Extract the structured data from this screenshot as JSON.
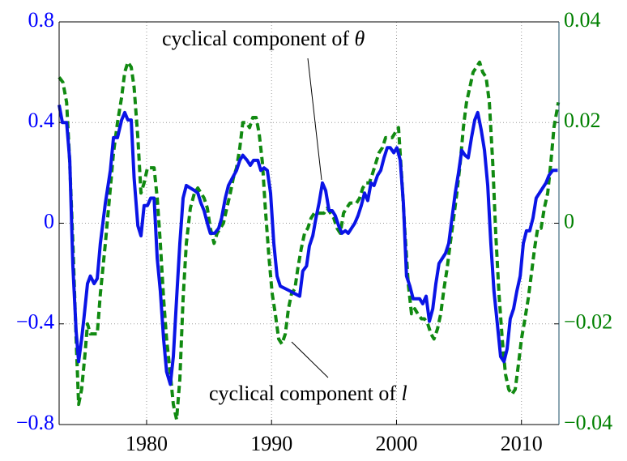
{
  "chart_data": {
    "type": "line",
    "xlim": [
      1973,
      2013
    ],
    "xticks": [
      1980,
      1990,
      2000,
      2010
    ],
    "ylim": [
      -0.8,
      0.8
    ],
    "yticks": [
      -0.8,
      -0.4,
      0,
      0.4,
      0.8
    ],
    "y2lim": [
      -0.04,
      0.04
    ],
    "y2ticks": [
      -0.04,
      -0.02,
      0,
      0.02,
      0.04
    ],
    "grid": true,
    "left_axis_color": "#0000ff",
    "right_axis_color": "#008000",
    "annotations": [
      {
        "text": "cyclical component of ",
        "symbol": "θ",
        "series": 0
      },
      {
        "text": "cyclical component of ",
        "symbol": "l",
        "series": 1
      }
    ],
    "series": [
      {
        "color": "#0a14e6",
        "dashed": false,
        "x": [
          1973.0,
          1973.26,
          1973.6,
          1973.85,
          1974.1,
          1974.36,
          1974.56,
          1974.8,
          1975.0,
          1975.27,
          1975.5,
          1975.8,
          1976.05,
          1976.3,
          1976.7,
          1977.1,
          1977.35,
          1977.67,
          1978.0,
          1978.25,
          1978.5,
          1978.77,
          1979.0,
          1979.3,
          1979.55,
          1979.8,
          1980.07,
          1980.33,
          1980.6,
          1980.85,
          1981.1,
          1981.36,
          1981.6,
          1981.9,
          1982.14,
          1982.4,
          1982.66,
          1982.92,
          1983.18,
          1983.5,
          1983.83,
          1984.1,
          1984.35,
          1984.6,
          1984.86,
          1985.1,
          1985.45,
          1985.77,
          1986.0,
          1986.3,
          1986.55,
          1986.87,
          1987.2,
          1987.46,
          1987.7,
          1988.04,
          1988.3,
          1988.56,
          1988.9,
          1989.14,
          1989.4,
          1989.66,
          1989.92,
          1990.18,
          1990.44,
          1990.7,
          1991.1,
          1991.5,
          1991.87,
          1992.25,
          1992.5,
          1992.8,
          1993.03,
          1993.3,
          1993.55,
          1993.8,
          1994.07,
          1994.33,
          1994.6,
          1994.85,
          1995.1,
          1995.37,
          1995.63,
          1995.9,
          1996.14,
          1996.4,
          1996.66,
          1996.92,
          1997.18,
          1997.44,
          1997.7,
          1997.96,
          1998.2,
          1998.48,
          1998.74,
          1999.0,
          1999.26,
          1999.5,
          1999.78,
          2000.03,
          2000.3,
          2000.55,
          2000.8,
          2001.07,
          2001.33,
          2001.6,
          2001.85,
          2002.1,
          2002.37,
          2002.63,
          2002.9,
          2003.15,
          2003.4,
          2003.66,
          2003.92,
          2004.18,
          2004.44,
          2004.7,
          2004.96,
          2005.22,
          2005.48,
          2005.74,
          2006.0,
          2006.26,
          2006.5,
          2006.78,
          2007.04,
          2007.3,
          2007.55,
          2007.8,
          2008.07,
          2008.33,
          2008.6,
          2008.85,
          2009.1,
          2009.37,
          2009.63,
          2009.9,
          2010.15,
          2010.4,
          2010.66,
          2010.92,
          2011.18,
          2011.44,
          2011.7,
          2011.96,
          2012.2,
          2012.5,
          2012.9
        ],
        "values": [
          0.47,
          0.4,
          0.4,
          0.25,
          -0.17,
          -0.43,
          -0.55,
          -0.46,
          -0.37,
          -0.24,
          -0.21,
          -0.24,
          -0.22,
          -0.08,
          0.08,
          0.21,
          0.34,
          0.34,
          0.41,
          0.44,
          0.41,
          0.41,
          0.18,
          -0.01,
          -0.05,
          0.07,
          0.07,
          0.1,
          0.1,
          -0.14,
          -0.27,
          -0.46,
          -0.59,
          -0.64,
          -0.53,
          -0.3,
          -0.08,
          0.1,
          0.15,
          0.14,
          0.13,
          0.12,
          0.08,
          0.05,
          0.0,
          -0.04,
          -0.04,
          -0.02,
          0.02,
          0.1,
          0.15,
          0.18,
          0.21,
          0.25,
          0.27,
          0.25,
          0.23,
          0.25,
          0.25,
          0.21,
          0.22,
          0.21,
          0.12,
          -0.08,
          -0.21,
          -0.25,
          -0.26,
          -0.27,
          -0.28,
          -0.29,
          -0.19,
          -0.17,
          -0.09,
          -0.05,
          0.02,
          0.08,
          0.16,
          0.13,
          0.05,
          0.05,
          0.03,
          -0.01,
          -0.04,
          -0.03,
          -0.04,
          -0.02,
          0.0,
          0.03,
          0.07,
          0.12,
          0.09,
          0.16,
          0.15,
          0.19,
          0.21,
          0.26,
          0.3,
          0.3,
          0.28,
          0.3,
          0.25,
          0.08,
          -0.21,
          -0.25,
          -0.3,
          -0.3,
          -0.3,
          -0.32,
          -0.29,
          -0.39,
          -0.34,
          -0.24,
          -0.16,
          -0.14,
          -0.12,
          -0.08,
          0.02,
          0.12,
          0.2,
          0.29,
          0.27,
          0.26,
          0.34,
          0.41,
          0.44,
          0.37,
          0.29,
          0.15,
          -0.08,
          -0.27,
          -0.4,
          -0.53,
          -0.55,
          -0.5,
          -0.38,
          -0.34,
          -0.27,
          -0.21,
          -0.08,
          -0.03,
          -0.03,
          0.02,
          0.1,
          0.12,
          0.14,
          0.16,
          0.19,
          0.21,
          0.21
        ]
      },
      {
        "color": "#118a11",
        "dashed": true,
        "axis": "y2",
        "x": [
          1973.0,
          1973.3,
          1973.6,
          1973.85,
          1974.1,
          1974.36,
          1974.56,
          1974.8,
          1975.07,
          1975.27,
          1975.5,
          1975.8,
          1976.05,
          1976.3,
          1976.7,
          1977.1,
          1977.35,
          1977.67,
          1978.0,
          1978.25,
          1978.5,
          1978.77,
          1979.0,
          1979.3,
          1979.55,
          1979.8,
          1980.07,
          1980.33,
          1980.6,
          1980.85,
          1981.1,
          1981.36,
          1981.6,
          1981.9,
          1982.14,
          1982.4,
          1982.66,
          1982.92,
          1983.18,
          1983.5,
          1983.83,
          1984.1,
          1984.35,
          1984.6,
          1984.86,
          1985.1,
          1985.4,
          1985.64,
          1985.9,
          1986.15,
          1986.42,
          1986.7,
          1986.94,
          1987.2,
          1987.46,
          1987.7,
          1987.98,
          1988.24,
          1988.5,
          1988.76,
          1989.0,
          1989.27,
          1989.5,
          1989.8,
          1990.05,
          1990.3,
          1990.57,
          1990.83,
          1991.1,
          1991.35,
          1991.6,
          1991.87,
          1992.1,
          1992.38,
          1992.64,
          1992.9,
          1993.16,
          1993.42,
          1993.68,
          1993.94,
          1994.2,
          1994.46,
          1994.72,
          1994.98,
          1995.24,
          1995.5,
          1995.76,
          1996.0,
          1996.28,
          1996.53,
          1996.8,
          1997.05,
          1997.3,
          1997.57,
          1997.83,
          1998.1,
          1998.35,
          1998.6,
          1998.87,
          1999.13,
          1999.4,
          1999.65,
          1999.9,
          2000.16,
          2000.42,
          2000.68,
          2000.94,
          2001.2,
          2001.46,
          2001.7,
          2002.0,
          2002.24,
          2002.5,
          2002.76,
          2003.0,
          2003.28,
          2003.54,
          2003.8,
          2004.05,
          2004.3,
          2004.57,
          2004.83,
          2005.1,
          2005.35,
          2005.6,
          2005.87,
          2006.13,
          2006.4,
          2006.65,
          2006.9,
          2007.17,
          2007.43,
          2007.7,
          2007.94,
          2008.2,
          2008.46,
          2008.72,
          2008.98,
          2009.24,
          2009.5,
          2009.76,
          2010.0,
          2010.28,
          2010.54,
          2010.8,
          2011.05,
          2011.3,
          2011.57,
          2011.83,
          2012.1,
          2012.35,
          2012.6,
          2012.95
        ],
        "values": [
          0.029,
          0.028,
          0.024,
          0.012,
          -0.004,
          -0.023,
          -0.036,
          -0.033,
          -0.026,
          -0.02,
          -0.022,
          -0.022,
          -0.022,
          -0.014,
          -0.004,
          0.007,
          0.014,
          0.02,
          0.025,
          0.03,
          0.032,
          0.031,
          0.027,
          0.017,
          0.006,
          0.008,
          0.011,
          0.011,
          0.011,
          0.005,
          -0.004,
          -0.015,
          -0.023,
          -0.03,
          -0.036,
          -0.039,
          -0.031,
          -0.015,
          -0.004,
          0.003,
          0.006,
          0.007,
          0.006,
          0.005,
          0.003,
          -0.001,
          -0.004,
          -0.002,
          -0.001,
          0.0,
          0.003,
          0.006,
          0.009,
          0.011,
          0.015,
          0.02,
          0.02,
          0.019,
          0.021,
          0.021,
          0.018,
          0.012,
          0.003,
          -0.007,
          -0.014,
          -0.018,
          -0.023,
          -0.024,
          -0.022,
          -0.017,
          -0.014,
          -0.013,
          -0.009,
          -0.005,
          -0.002,
          -0.001,
          0.001,
          0.002,
          0.002,
          0.002,
          0.002,
          0.003,
          0.002,
          0.001,
          -0.001,
          -0.002,
          0.002,
          0.003,
          0.004,
          0.004,
          0.004,
          0.005,
          0.007,
          0.008,
          0.008,
          0.01,
          0.012,
          0.014,
          0.015,
          0.017,
          0.017,
          0.017,
          0.018,
          0.019,
          0.009,
          -0.002,
          -0.012,
          -0.018,
          -0.017,
          -0.018,
          -0.019,
          -0.019,
          -0.02,
          -0.022,
          -0.023,
          -0.021,
          -0.018,
          -0.013,
          -0.009,
          -0.004,
          0.001,
          0.006,
          0.012,
          0.019,
          0.024,
          0.027,
          0.03,
          0.031,
          0.032,
          0.03,
          0.029,
          0.024,
          0.012,
          -0.002,
          -0.014,
          -0.023,
          -0.03,
          -0.033,
          -0.034,
          -0.033,
          -0.028,
          -0.023,
          -0.019,
          -0.015,
          -0.01,
          -0.005,
          -0.001,
          -0.001,
          0.003,
          0.006,
          0.012,
          0.019,
          0.024
        ]
      }
    ]
  }
}
